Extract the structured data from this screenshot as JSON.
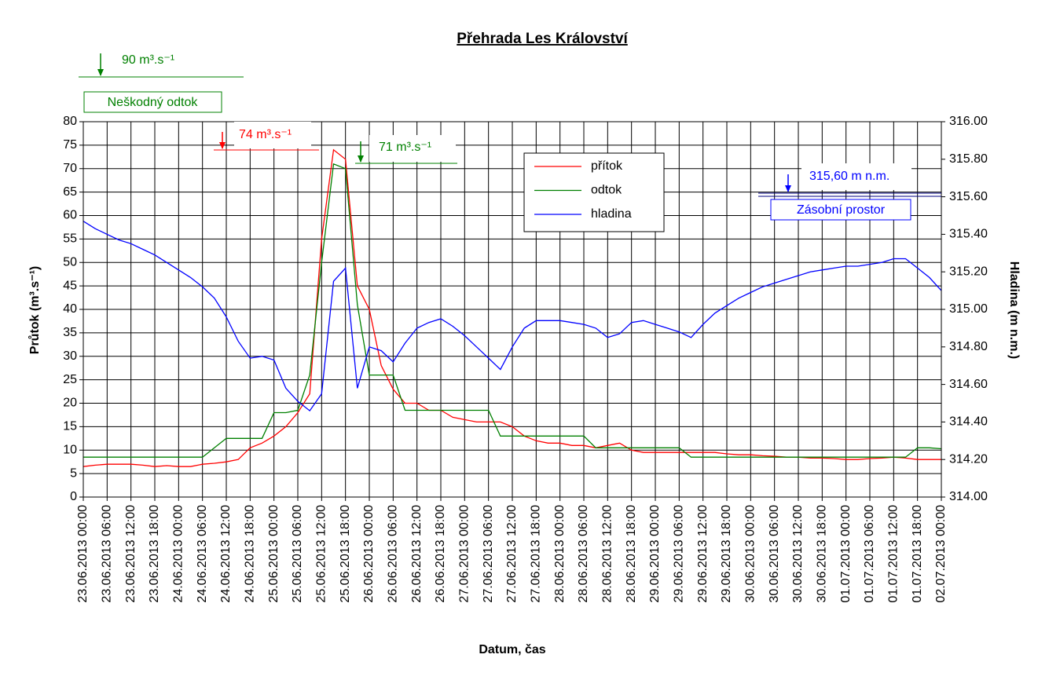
{
  "chart_data": {
    "type": "line",
    "title": "Přehrada Les Království",
    "x_label": "Datum, čas",
    "y_label": "Průtok (m³.s⁻¹)",
    "y2_label": "Hladina (m n.m.)",
    "categories": [
      "23.06.2013 00:00",
      null,
      "23.06.2013 06:00",
      null,
      "23.06.2013 12:00",
      null,
      "23.06.2013 18:00",
      null,
      "24.06.2013 00:00",
      null,
      "24.06.2013 06:00",
      null,
      "24.06.2013 12:00",
      null,
      "24.06.2013 18:00",
      null,
      "25.06.2013 00:00",
      null,
      "25.06.2013 06:00",
      null,
      "25.06.2013 12:00",
      null,
      "25.06.2013 18:00",
      null,
      "26.06.2013 00:00",
      null,
      "26.06.2013 06:00",
      null,
      "26.06.2013 12:00",
      null,
      "26.06.2013 18:00",
      null,
      "27.06.2013 00:00",
      null,
      "27.06.2013 06:00",
      null,
      "27.06.2013 12:00",
      null,
      "27.06.2013 18:00",
      null,
      "28.06.2013 00:00",
      null,
      "28.06.2013 06:00",
      null,
      "28.06.2013 12:00",
      null,
      "28.06.2013 18:00",
      null,
      "29.06.2013 00:00",
      null,
      "29.06.2013 06:00",
      null,
      "29.06.2013 12:00",
      null,
      "29.06.2013 18:00",
      null,
      "30.06.2013 00:00",
      null,
      "30.06.2013 06:00",
      null,
      "30.06.2013 12:00",
      null,
      "30.06.2013 18:00",
      null,
      "01.07.2013 00:00",
      null,
      "01.07.2013 06:00",
      null,
      "01.07.2013 12:00",
      null,
      "01.07.2013 18:00",
      null,
      "02.07.2013 00:00"
    ],
    "series": [
      {
        "name": "přítok",
        "color": "#ff0000",
        "values": [
          6.5,
          6.8,
          7,
          7,
          7,
          6.8,
          6.5,
          6.7,
          6.5,
          6.5,
          7,
          7.2,
          7.5,
          8,
          10.5,
          11.5,
          13,
          15,
          18,
          22,
          55,
          74,
          72,
          45,
          40,
          28,
          23,
          20,
          20,
          18.5,
          18.5,
          17,
          16.5,
          16,
          16,
          16,
          15,
          13,
          12,
          11.5,
          11.5,
          11,
          11,
          10.5,
          11,
          11.5,
          10,
          9.5,
          9.5,
          9.5,
          9.5,
          9.5,
          9.5,
          9.5,
          9.2,
          9,
          9,
          8.8,
          8.7,
          8.5,
          8.5,
          8.3,
          8.3,
          8.2,
          8,
          8,
          8.2,
          8.3,
          8.5,
          8.3,
          8,
          8,
          8
        ]
      },
      {
        "name": "odtok",
        "color": "#008000",
        "values": [
          8.5,
          8.5,
          8.5,
          8.5,
          8.5,
          8.5,
          8.5,
          8.5,
          8.5,
          8.5,
          8.5,
          10.5,
          12.5,
          12.5,
          12.5,
          12.5,
          18,
          18,
          18.5,
          26,
          50,
          71,
          70,
          41,
          26,
          26,
          26,
          18.5,
          18.5,
          18.5,
          18.5,
          18.5,
          18.5,
          18.5,
          18.5,
          13,
          13,
          13,
          13,
          13,
          13,
          13,
          13,
          10.5,
          10.5,
          10.5,
          10.5,
          10.5,
          10.5,
          10.5,
          10.5,
          8.5,
          8.5,
          8.5,
          8.5,
          8.5,
          8.5,
          8.5,
          8.5,
          8.5,
          8.5,
          8.5,
          8.5,
          8.5,
          8.5,
          8.5,
          8.5,
          8.5,
          8.5,
          8.5,
          10.5,
          10.5,
          10.3
        ]
      },
      {
        "name": "hladina",
        "color": "#0000ff",
        "axis": "y2",
        "values": [
          315.47,
          315.43,
          315.4,
          315.37,
          315.35,
          315.32,
          315.29,
          315.25,
          315.21,
          315.17,
          315.12,
          315.06,
          314.96,
          314.83,
          314.74,
          314.75,
          314.73,
          314.58,
          314.51,
          314.46,
          314.55,
          315.15,
          315.22,
          314.58,
          314.8,
          314.78,
          314.72,
          314.82,
          314.9,
          314.93,
          314.95,
          314.91,
          314.86,
          314.8,
          314.74,
          314.68,
          314.8,
          314.9,
          314.94,
          314.94,
          314.94,
          314.93,
          314.92,
          314.9,
          314.85,
          314.87,
          314.93,
          314.94,
          314.92,
          314.9,
          314.88,
          314.85,
          314.92,
          314.98,
          315.02,
          315.06,
          315.09,
          315.12,
          315.14,
          315.16,
          315.18,
          315.2,
          315.21,
          315.22,
          315.23,
          315.23,
          315.24,
          315.25,
          315.27,
          315.27,
          315.22,
          315.17,
          315.1
        ]
      }
    ],
    "ylim": [
      0,
      80
    ],
    "yticks": [
      0,
      5,
      10,
      15,
      20,
      25,
      30,
      35,
      40,
      45,
      50,
      55,
      60,
      65,
      70,
      75,
      80
    ],
    "y2lim": [
      314,
      316
    ],
    "y2ticks": [
      {
        "value": 314,
        "label": "314.00"
      },
      {
        "value": 314.2,
        "label": "314.20"
      },
      {
        "value": 314.4,
        "label": "314.40"
      },
      {
        "value": 314.6,
        "label": "314.60"
      },
      {
        "value": 314.8,
        "label": "314.80"
      },
      {
        "value": 315,
        "label": "315.00"
      },
      {
        "value": 315.2,
        "label": "315.20"
      },
      {
        "value": 315.4,
        "label": "315.40"
      },
      {
        "value": 315.6,
        "label": "315.60"
      },
      {
        "value": 315.8,
        "label": "315.80"
      },
      {
        "value": 316,
        "label": "316.00"
      }
    ],
    "grid": true,
    "annotations": [
      "90 m³.s⁻¹",
      "Neškodný odtok",
      "74 m³.s⁻¹",
      "71 m³.s⁻¹",
      "315,60 m n.m.",
      "Zásobní prostor"
    ]
  }
}
